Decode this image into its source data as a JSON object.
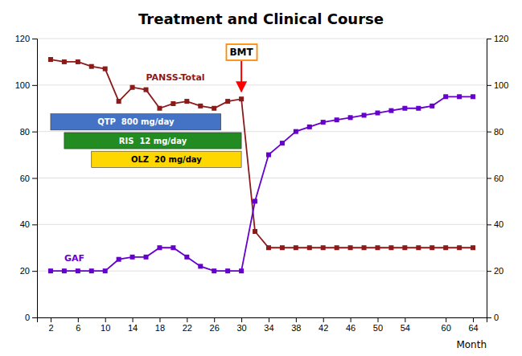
{
  "chart_data": {
    "type": "line",
    "title": "Treatment and Clinical Course",
    "x_label": "Month",
    "x": [
      2,
      4,
      6,
      8,
      10,
      12,
      14,
      16,
      18,
      20,
      22,
      24,
      26,
      28,
      30,
      32,
      34,
      36,
      38,
      40,
      42,
      44,
      46,
      48,
      50,
      52,
      54,
      56,
      58,
      60,
      62,
      64
    ],
    "series": [
      {
        "name": "PANSS-Total",
        "color": "#8B1A1A",
        "marker": "square",
        "values": [
          111,
          110,
          110,
          108,
          107,
          93,
          99,
          98,
          90,
          92,
          93,
          91,
          90,
          93,
          94,
          37,
          30,
          30,
          30,
          30,
          30,
          30,
          30,
          30,
          30,
          30,
          30,
          30,
          30,
          30,
          30,
          30
        ]
      },
      {
        "name": "GAF",
        "color": "#6600CC",
        "marker": "square",
        "values": [
          20,
          20,
          20,
          20,
          20,
          25,
          26,
          26,
          30,
          30,
          26,
          22,
          20,
          20,
          20,
          50,
          70,
          75,
          80,
          82,
          84,
          85,
          86,
          87,
          88,
          89,
          90,
          90,
          91,
          95,
          95,
          95
        ]
      }
    ],
    "annotations": [
      {
        "label": "QTP  800 mg/day",
        "start": 2,
        "end": 27,
        "color": "#4472C4"
      },
      {
        "label": "RIS  12 mg/day",
        "start": 4,
        "end": 30,
        "color": "#228B22"
      },
      {
        "label": "OLZ  20 mg/day",
        "start": 8,
        "end": 30,
        "color": "#FFD700"
      },
      {
        "label": "BMT",
        "x": 30,
        "color": "#FF8C00"
      }
    ],
    "xlim": [
      0,
      66
    ],
    "xticks": [
      2,
      6,
      10,
      14,
      18,
      22,
      26,
      30,
      34,
      38,
      42,
      46,
      50,
      54,
      60,
      64
    ],
    "ylim": [
      0,
      120
    ],
    "yticks": [
      0,
      20,
      40,
      60,
      80,
      100,
      120
    ],
    "y2lim": [
      0,
      120
    ],
    "y2ticks": [
      0,
      20,
      40,
      60,
      80,
      100,
      120
    ],
    "grid": true
  }
}
